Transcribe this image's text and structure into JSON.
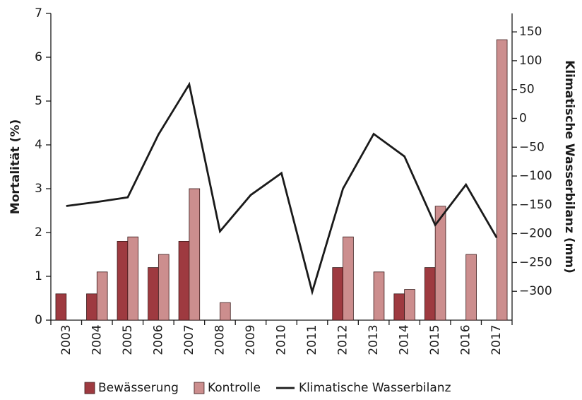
{
  "chart_data": {
    "type": "bar-line",
    "ylabel": "Mortalität (%)",
    "y2label": "Klimatische Wasserbilanz (mm)",
    "categories": [
      "2003",
      "2004",
      "2005",
      "2006",
      "2007",
      "2008",
      "2009",
      "2010",
      "2011",
      "2012",
      "2013",
      "2014",
      "2015",
      "2016",
      "2017"
    ],
    "series": [
      {
        "name": "Bewässerung",
        "type": "bar",
        "color": "#9e3a40",
        "values": [
          0.6,
          0.6,
          1.8,
          1.2,
          1.8,
          0,
          0,
          0,
          0,
          1.2,
          0,
          0.6,
          1.2,
          0,
          0
        ]
      },
      {
        "name": "Kontrolle",
        "type": "bar",
        "color": "#cc8e8e",
        "values": [
          0,
          1.1,
          1.9,
          1.5,
          3.0,
          0.4,
          0,
          0,
          0,
          1.9,
          1.1,
          0.7,
          2.6,
          1.5,
          6.4
        ]
      },
      {
        "name": "Klimatische Wasserbilanz",
        "type": "line",
        "axis": "y2",
        "color": "#1a1a1a",
        "values": [
          -152,
          -145,
          -137,
          -28,
          59,
          -196,
          -133,
          -95,
          -301,
          -122,
          -27,
          -66,
          -185,
          -115,
          -207
        ]
      }
    ],
    "ylim": [
      0,
      7
    ],
    "yticks": [
      0,
      1,
      2,
      3,
      4,
      5,
      6,
      7
    ],
    "y2lim": [
      -350,
      182
    ],
    "y2ticks": [
      150,
      100,
      50,
      0,
      {
        "value": -50,
        "label": "−50"
      },
      {
        "value": -100,
        "label": "−100"
      },
      {
        "value": -150,
        "label": "−150"
      },
      {
        "value": -200,
        "label": "−200"
      },
      {
        "value": -250,
        "label": "−250"
      },
      {
        "value": -300,
        "label": "−300"
      }
    ],
    "legend": "bottom"
  }
}
